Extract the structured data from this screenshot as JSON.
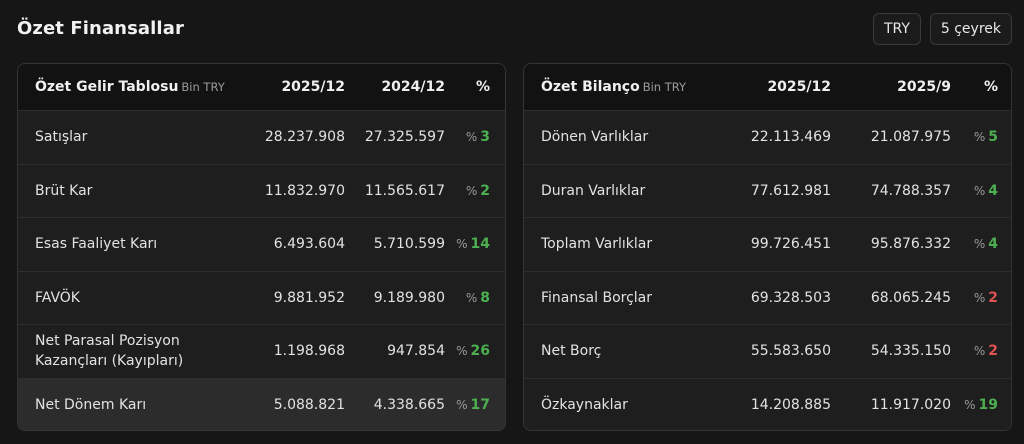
{
  "header": {
    "title": "Özet Finansallar",
    "currency_button": "TRY",
    "period_button": "5 çeyrek"
  },
  "income": {
    "title": "Özet Gelir Tablosu",
    "unit": "Bin TRY",
    "col1": "2025/12",
    "col2": "2024/12",
    "col_pct": "%",
    "rows": [
      {
        "label": "Satışlar",
        "v1": "28.237.908",
        "v2": "27.325.597",
        "pct_symbol": "%",
        "pct": "3"
      },
      {
        "label": "Brüt Kar",
        "v1": "11.832.970",
        "v2": "11.565.617",
        "pct_symbol": "%",
        "pct": "2"
      },
      {
        "label": "Esas Faaliyet Karı",
        "v1": "6.493.604",
        "v2": "5.710.599",
        "pct_symbol": "%",
        "pct": "14"
      },
      {
        "label": "FAVÖK",
        "v1": "9.881.952",
        "v2": "9.189.980",
        "pct_symbol": "%",
        "pct": "8"
      },
      {
        "label": "Net Parasal Pozisyon Kazançları (Kayıpları)",
        "v1": "1.198.968",
        "v2": "947.854",
        "pct_symbol": "%",
        "pct": "26"
      },
      {
        "label": "Net Dönem Karı",
        "v1": "5.088.821",
        "v2": "4.338.665",
        "pct_symbol": "%",
        "pct": "17"
      }
    ]
  },
  "balance": {
    "title": "Özet Bilanço",
    "unit": "Bin TRY",
    "col1": "2025/12",
    "col2": "2025/9",
    "col_pct": "%",
    "rows": [
      {
        "label": "Dönen Varlıklar",
        "v1": "22.113.469",
        "v2": "21.087.975",
        "pct_symbol": "%",
        "pct": "5"
      },
      {
        "label": "Duran Varlıklar",
        "v1": "77.612.981",
        "v2": "74.788.357",
        "pct_symbol": "%",
        "pct": "4"
      },
      {
        "label": "Toplam Varlıklar",
        "v1": "99.726.451",
        "v2": "95.876.332",
        "pct_symbol": "%",
        "pct": "4"
      },
      {
        "label": "Finansal Borçlar",
        "v1": "69.328.503",
        "v2": "68.065.245",
        "pct_symbol": "%",
        "pct": "2"
      },
      {
        "label": "Net Borç",
        "v1": "55.583.650",
        "v2": "54.335.150",
        "pct_symbol": "%",
        "pct": "2"
      },
      {
        "label": "Özkaynaklar",
        "v1": "14.208.885",
        "v2": "11.917.020",
        "pct_symbol": "%",
        "pct": "19"
      }
    ]
  },
  "colors": {
    "positive": "#4caf50",
    "negative": "#e05252",
    "background": "#161616"
  }
}
